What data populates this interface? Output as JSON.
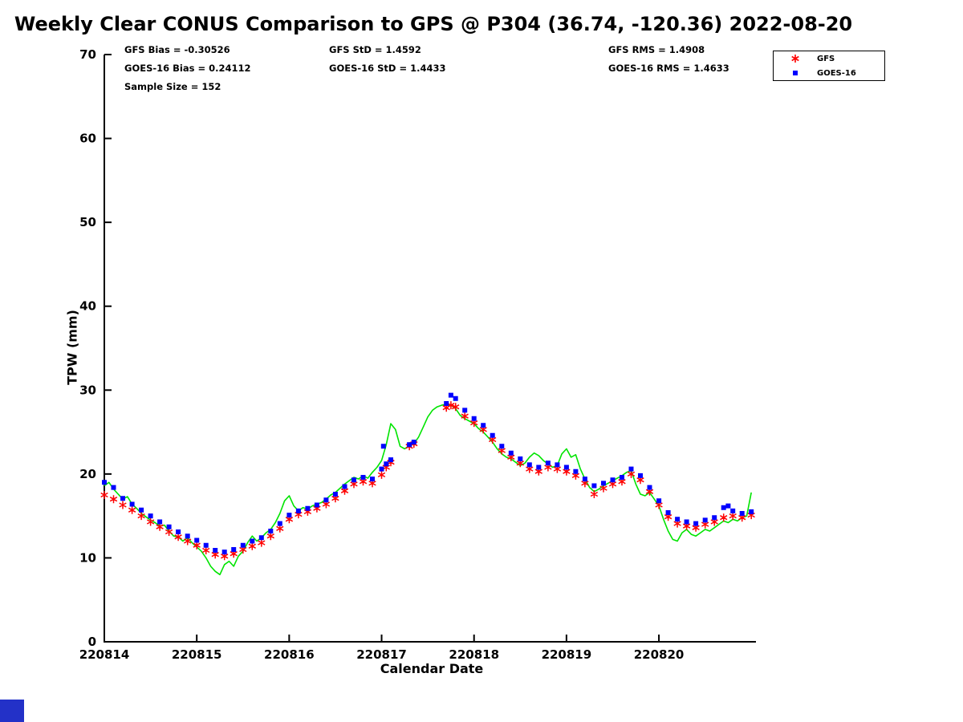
{
  "stats": {
    "gfs_bias": "GFS Bias = -0.30526",
    "goes_bias": "GOES-16 Bias = 0.24112",
    "sample_size": "Sample Size = 152",
    "gfs_std": "GFS StD = 1.4592",
    "goes_std": "GOES-16 StD = 1.4433",
    "gfs_rms": "GFS RMS = 1.4908",
    "goes_rms": "GOES-16 RMS = 1.4633"
  },
  "legend": {
    "items": [
      {
        "label": "GFS",
        "marker": "asterisk",
        "color": "#ff0000"
      },
      {
        "label": "GOES-16",
        "marker": "square",
        "color": "#0000ff"
      }
    ]
  },
  "chart_data": {
    "type": "line+scatter",
    "title": "Weekly Clear CONUS Comparison to GPS @ P304 (36.74, -120.36) 2022-08-20",
    "xlabel": "Calendar Date",
    "ylabel": "TPW (mm)",
    "ylim": [
      0,
      70
    ],
    "xlim": [
      0,
      7.05
    ],
    "x_unit": "days since 220814",
    "yticks": [
      0,
      10,
      20,
      30,
      40,
      50,
      60,
      70
    ],
    "xticks": {
      "labels": [
        "220814",
        "220815",
        "220816",
        "220817",
        "220818",
        "220819",
        "220820"
      ],
      "positions": [
        0,
        1,
        2,
        3,
        4,
        5,
        6
      ]
    },
    "grid": false,
    "legend_position": "top-right-outside",
    "series": [
      {
        "name": "GPS",
        "type": "line",
        "color": "#00e400",
        "points": [
          [
            0,
            18.6
          ],
          [
            0.05,
            19
          ],
          [
            0.1,
            18.2
          ],
          [
            0.15,
            17.6
          ],
          [
            0.2,
            17
          ],
          [
            0.25,
            17.3
          ],
          [
            0.3,
            16.4
          ],
          [
            0.35,
            15.9
          ],
          [
            0.4,
            15.3
          ],
          [
            0.45,
            14.9
          ],
          [
            0.5,
            14.5
          ],
          [
            0.55,
            14.2
          ],
          [
            0.6,
            13.8
          ],
          [
            0.65,
            13.9
          ],
          [
            0.7,
            13.2
          ],
          [
            0.75,
            12.6
          ],
          [
            0.8,
            12.5
          ],
          [
            0.85,
            12
          ],
          [
            0.9,
            12.4
          ],
          [
            0.95,
            11.8
          ],
          [
            1,
            11.3
          ],
          [
            1.05,
            10.8
          ],
          [
            1.1,
            10
          ],
          [
            1.15,
            9
          ],
          [
            1.2,
            8.4
          ],
          [
            1.25,
            8
          ],
          [
            1.3,
            9.2
          ],
          [
            1.35,
            9.6
          ],
          [
            1.4,
            9
          ],
          [
            1.45,
            10.2
          ],
          [
            1.5,
            10.8
          ],
          [
            1.55,
            11.8
          ],
          [
            1.6,
            12.6
          ],
          [
            1.65,
            12
          ],
          [
            1.7,
            12.4
          ],
          [
            1.75,
            13
          ],
          [
            1.8,
            13.4
          ],
          [
            1.85,
            14.2
          ],
          [
            1.9,
            15.3
          ],
          [
            1.95,
            16.8
          ],
          [
            2,
            17.4
          ],
          [
            2.05,
            16.2
          ],
          [
            2.1,
            15.6
          ],
          [
            2.15,
            16
          ],
          [
            2.2,
            15.8
          ],
          [
            2.25,
            16.2
          ],
          [
            2.3,
            16.4
          ],
          [
            2.35,
            16.6
          ],
          [
            2.4,
            17
          ],
          [
            2.45,
            17.5
          ],
          [
            2.5,
            17.8
          ],
          [
            2.55,
            18.3
          ],
          [
            2.6,
            18.8
          ],
          [
            2.65,
            19.2
          ],
          [
            2.7,
            19.6
          ],
          [
            2.75,
            19.4
          ],
          [
            2.8,
            19.8
          ],
          [
            2.85,
            19.5
          ],
          [
            2.9,
            20.2
          ],
          [
            2.95,
            20.8
          ],
          [
            3,
            21.6
          ],
          [
            3.05,
            23.5
          ],
          [
            3.1,
            26
          ],
          [
            3.15,
            25.3
          ],
          [
            3.2,
            23.3
          ],
          [
            3.25,
            23
          ],
          [
            3.3,
            23.4
          ],
          [
            3.35,
            23.6
          ],
          [
            3.4,
            24.4
          ],
          [
            3.45,
            25.6
          ],
          [
            3.5,
            26.8
          ],
          [
            3.55,
            27.6
          ],
          [
            3.6,
            28
          ],
          [
            3.65,
            28.2
          ],
          [
            3.7,
            28.3
          ],
          [
            3.75,
            28.2
          ],
          [
            3.8,
            27.8
          ],
          [
            3.85,
            27
          ],
          [
            3.9,
            26.6
          ],
          [
            3.95,
            26.3
          ],
          [
            4,
            26
          ],
          [
            4.05,
            25.4
          ],
          [
            4.1,
            25
          ],
          [
            4.15,
            24.4
          ],
          [
            4.2,
            23.8
          ],
          [
            4.25,
            23
          ],
          [
            4.3,
            22.4
          ],
          [
            4.35,
            22
          ],
          [
            4.4,
            21.8
          ],
          [
            4.45,
            21.4
          ],
          [
            4.5,
            21
          ],
          [
            4.55,
            21.3
          ],
          [
            4.6,
            22
          ],
          [
            4.65,
            22.5
          ],
          [
            4.7,
            22.2
          ],
          [
            4.75,
            21.6
          ],
          [
            4.8,
            21.2
          ],
          [
            4.85,
            20.8
          ],
          [
            4.9,
            21
          ],
          [
            4.95,
            22.4
          ],
          [
            5,
            23
          ],
          [
            5.05,
            22
          ],
          [
            5.1,
            22.3
          ],
          [
            5.15,
            20.6
          ],
          [
            5.2,
            19.4
          ],
          [
            5.25,
            18.4
          ],
          [
            5.3,
            17.9
          ],
          [
            5.35,
            18.2
          ],
          [
            5.4,
            18.6
          ],
          [
            5.45,
            18.9
          ],
          [
            5.5,
            19.2
          ],
          [
            5.55,
            19.5
          ],
          [
            5.6,
            19.8
          ],
          [
            5.65,
            20.2
          ],
          [
            5.7,
            20.4
          ],
          [
            5.75,
            18.8
          ],
          [
            5.8,
            17.6
          ],
          [
            5.85,
            17.4
          ],
          [
            5.9,
            17.8
          ],
          [
            5.95,
            17
          ],
          [
            6,
            16.2
          ],
          [
            6.05,
            14.6
          ],
          [
            6.1,
            13.2
          ],
          [
            6.15,
            12.2
          ],
          [
            6.2,
            12
          ],
          [
            6.25,
            13
          ],
          [
            6.3,
            13.4
          ],
          [
            6.35,
            12.8
          ],
          [
            6.4,
            12.6
          ],
          [
            6.45,
            13
          ],
          [
            6.5,
            13.4
          ],
          [
            6.55,
            13.2
          ],
          [
            6.6,
            13.6
          ],
          [
            6.65,
            14
          ],
          [
            6.7,
            14.4
          ],
          [
            6.75,
            14.2
          ],
          [
            6.8,
            14.6
          ],
          [
            6.85,
            14.4
          ],
          [
            6.9,
            14.8
          ],
          [
            6.95,
            15
          ],
          [
            7,
            17.8
          ]
        ]
      },
      {
        "name": "GFS",
        "type": "scatter",
        "marker": "asterisk",
        "color": "#ff0000",
        "points": [
          [
            0,
            17.5
          ],
          [
            0.1,
            17
          ],
          [
            0.2,
            16.3
          ],
          [
            0.3,
            15.7
          ],
          [
            0.4,
            15
          ],
          [
            0.5,
            14.3
          ],
          [
            0.6,
            13.7
          ],
          [
            0.7,
            13.1
          ],
          [
            0.8,
            12.5
          ],
          [
            0.9,
            12
          ],
          [
            1,
            11.5
          ],
          [
            1.1,
            10.9
          ],
          [
            1.2,
            10.4
          ],
          [
            1.3,
            10.2
          ],
          [
            1.4,
            10.5
          ],
          [
            1.5,
            11
          ],
          [
            1.6,
            11.4
          ],
          [
            1.7,
            11.8
          ],
          [
            1.8,
            12.6
          ],
          [
            1.9,
            13.5
          ],
          [
            2,
            14.6
          ],
          [
            2.1,
            15.2
          ],
          [
            2.2,
            15.5
          ],
          [
            2.3,
            15.9
          ],
          [
            2.4,
            16.4
          ],
          [
            2.5,
            17.1
          ],
          [
            2.6,
            18
          ],
          [
            2.7,
            18.8
          ],
          [
            2.8,
            19.1
          ],
          [
            2.9,
            18.9
          ],
          [
            3,
            19.9
          ],
          [
            3.05,
            20.8
          ],
          [
            3.1,
            21.4
          ],
          [
            3.3,
            23.3
          ],
          [
            3.35,
            23.6
          ],
          [
            3.7,
            27.9
          ],
          [
            3.75,
            28.2
          ],
          [
            3.8,
            28
          ],
          [
            3.9,
            26.9
          ],
          [
            4,
            26.1
          ],
          [
            4.1,
            25.3
          ],
          [
            4.2,
            24.1
          ],
          [
            4.3,
            22.8
          ],
          [
            4.4,
            22
          ],
          [
            4.5,
            21.3
          ],
          [
            4.6,
            20.6
          ],
          [
            4.7,
            20.3
          ],
          [
            4.8,
            20.8
          ],
          [
            4.9,
            20.6
          ],
          [
            5,
            20.3
          ],
          [
            5.1,
            19.8
          ],
          [
            5.2,
            18.9
          ],
          [
            5.3,
            17.6
          ],
          [
            5.4,
            18.3
          ],
          [
            5.5,
            18.8
          ],
          [
            5.6,
            19.1
          ],
          [
            5.7,
            20
          ],
          [
            5.8,
            19.3
          ],
          [
            5.9,
            17.9
          ],
          [
            6,
            16.3
          ],
          [
            6.1,
            14.9
          ],
          [
            6.2,
            14.1
          ],
          [
            6.3,
            13.8
          ],
          [
            6.4,
            13.6
          ],
          [
            6.5,
            14
          ],
          [
            6.6,
            14.3
          ],
          [
            6.7,
            14.8
          ],
          [
            6.8,
            15
          ],
          [
            6.9,
            14.8
          ],
          [
            7,
            15.1
          ]
        ]
      },
      {
        "name": "GOES-16",
        "type": "scatter",
        "marker": "square",
        "color": "#0000ff",
        "points": [
          [
            0,
            19
          ],
          [
            0.1,
            18.4
          ],
          [
            0.2,
            17.1
          ],
          [
            0.3,
            16.4
          ],
          [
            0.4,
            15.7
          ],
          [
            0.5,
            15
          ],
          [
            0.6,
            14.3
          ],
          [
            0.7,
            13.7
          ],
          [
            0.8,
            13.1
          ],
          [
            0.9,
            12.6
          ],
          [
            1,
            12.1
          ],
          [
            1.1,
            11.5
          ],
          [
            1.2,
            10.9
          ],
          [
            1.3,
            10.7
          ],
          [
            1.4,
            11
          ],
          [
            1.5,
            11.5
          ],
          [
            1.6,
            12
          ],
          [
            1.7,
            12.4
          ],
          [
            1.8,
            13.2
          ],
          [
            1.9,
            14.1
          ],
          [
            2,
            15.1
          ],
          [
            2.1,
            15.6
          ],
          [
            2.2,
            15.9
          ],
          [
            2.3,
            16.3
          ],
          [
            2.4,
            16.9
          ],
          [
            2.5,
            17.6
          ],
          [
            2.6,
            18.5
          ],
          [
            2.7,
            19.3
          ],
          [
            2.8,
            19.6
          ],
          [
            2.9,
            19.4
          ],
          [
            3,
            20.6
          ],
          [
            3.02,
            23.3
          ],
          [
            3.05,
            21.2
          ],
          [
            3.1,
            21.7
          ],
          [
            3.3,
            23.5
          ],
          [
            3.35,
            23.8
          ],
          [
            3.7,
            28.4
          ],
          [
            3.75,
            29.4
          ],
          [
            3.8,
            29
          ],
          [
            3.9,
            27.6
          ],
          [
            4,
            26.6
          ],
          [
            4.1,
            25.8
          ],
          [
            4.2,
            24.6
          ],
          [
            4.3,
            23.3
          ],
          [
            4.4,
            22.5
          ],
          [
            4.5,
            21.8
          ],
          [
            4.6,
            21.1
          ],
          [
            4.7,
            20.8
          ],
          [
            4.8,
            21.3
          ],
          [
            4.9,
            21.1
          ],
          [
            5,
            20.8
          ],
          [
            5.1,
            20.3
          ],
          [
            5.2,
            19.4
          ],
          [
            5.3,
            18.6
          ],
          [
            5.4,
            18.9
          ],
          [
            5.5,
            19.3
          ],
          [
            5.6,
            19.6
          ],
          [
            5.7,
            20.6
          ],
          [
            5.8,
            19.8
          ],
          [
            5.9,
            18.4
          ],
          [
            6,
            16.8
          ],
          [
            6.1,
            15.4
          ],
          [
            6.2,
            14.6
          ],
          [
            6.3,
            14.3
          ],
          [
            6.4,
            14.1
          ],
          [
            6.5,
            14.5
          ],
          [
            6.6,
            14.8
          ],
          [
            6.7,
            16
          ],
          [
            6.75,
            16.2
          ],
          [
            6.8,
            15.6
          ],
          [
            6.9,
            15.3
          ],
          [
            7,
            15.5
          ]
        ]
      }
    ]
  }
}
